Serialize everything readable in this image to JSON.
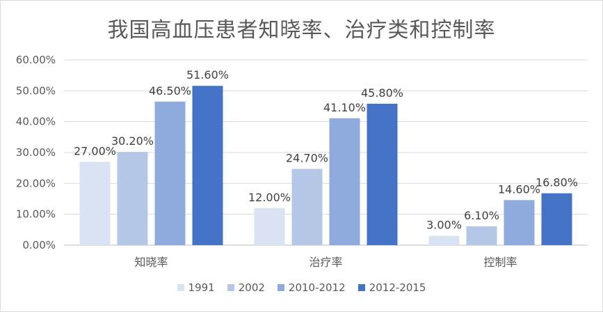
{
  "chart_data": {
    "type": "bar",
    "title": "我国高血压患者知晓率、治疗类和控制率",
    "categories": [
      "知晓率",
      "治疗率",
      "控制率"
    ],
    "series": [
      {
        "name": "1991",
        "color": "#dae3f3",
        "values": [
          27.0,
          12.0,
          3.0
        ],
        "labels": [
          "27.00%",
          "12.00%",
          "3.00%"
        ]
      },
      {
        "name": "2002",
        "color": "#b4c7e7",
        "values": [
          30.2,
          24.7,
          6.1
        ],
        "labels": [
          "30.20%",
          "24.70%",
          "6.10%"
        ]
      },
      {
        "name": "2010-2012",
        "color": "#8faadc",
        "values": [
          46.5,
          41.1,
          14.6
        ],
        "labels": [
          "46.50%",
          "41.10%",
          "14.60%"
        ]
      },
      {
        "name": "2012-2015",
        "color": "#4472c4",
        "values": [
          51.6,
          45.8,
          16.8
        ],
        "labels": [
          "51.60%",
          "45.80%",
          "16.80%"
        ]
      }
    ],
    "yticks": [
      "0.00%",
      "10.00%",
      "20.00%",
      "30.00%",
      "40.00%",
      "50.00%",
      "60.00%"
    ],
    "ylim": [
      0,
      60
    ],
    "grid": true,
    "legend_position": "bottom"
  }
}
